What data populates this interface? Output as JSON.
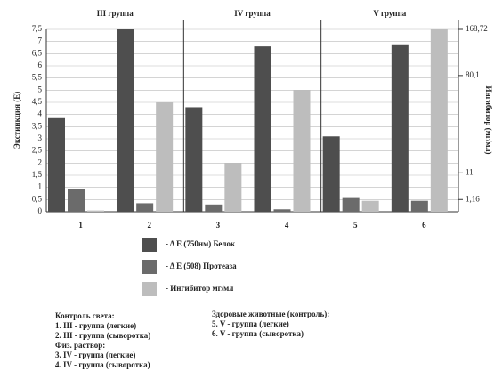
{
  "chart_data": {
    "type": "bar",
    "groups": [
      "III группа",
      "IV группа",
      "V группа"
    ],
    "categories": [
      "1",
      "2",
      "3",
      "4",
      "5",
      "6"
    ],
    "ylabel": "Экстинкция (E)",
    "y2label": "Ингибитор (мг/мл)",
    "ylim": [
      0,
      7.5
    ],
    "yticks": [
      0,
      {
        "value": 0.5,
        "label": "0,5"
      },
      1,
      {
        "value": 1.5,
        "label": "1,5"
      },
      2,
      {
        "value": 2.5,
        "label": "2,5"
      },
      3,
      {
        "value": 3.5,
        "label": "3,5"
      },
      4,
      {
        "value": 4.5,
        "label": "4,5"
      },
      5,
      {
        "value": 5.5,
        "label": "5,5"
      },
      6,
      {
        "value": 6.5,
        "label": "6,5"
      },
      7,
      {
        "value": 7.5,
        "label": "7,5"
      }
    ],
    "y2ticks": [
      {
        "value": 1.16,
        "label": "1,16"
      },
      {
        "value": 11,
        "label": "11"
      },
      {
        "value": 80.1,
        "label": "80,1"
      },
      {
        "value": 168.72,
        "label": "168,72"
      }
    ],
    "grid": true,
    "series": [
      {
        "name": "- Δ E (750нм) Белок",
        "color": "#4e4e4e",
        "values": [
          3.85,
          7.5,
          4.3,
          6.8,
          3.1,
          6.85
        ]
      },
      {
        "name": "- Δ E (508) Протеаза",
        "color": "#6b6b6b",
        "values": [
          0.95,
          0.35,
          0.3,
          0.1,
          0.6,
          0.45
        ]
      },
      {
        "name": "-   Ингибитор мг/мл",
        "color": "#bdbdbd",
        "values": [
          0.05,
          4.5,
          2.0,
          5.0,
          0.45,
          7.5
        ]
      }
    ],
    "notes_left": [
      "Контроль света:",
      "1. III - группа (легкие)",
      "2. III - группа (сыворотка)",
      "Физ. раствор:",
      "3. IV - группа (легкие)",
      "4. IV - группа (сыворотка)"
    ],
    "notes_right": [
      "Здоровые животные (контроль):",
      "5. V - группа (легкие)",
      "6. V - группа (сыворотка)"
    ]
  }
}
